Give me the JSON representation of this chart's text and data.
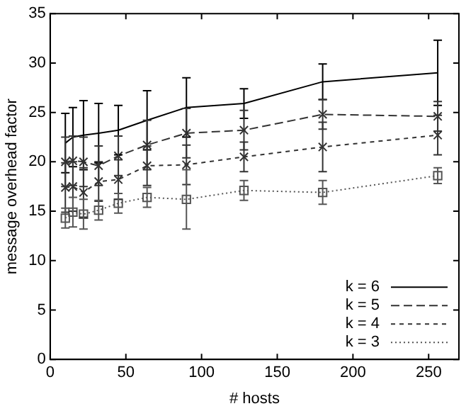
{
  "chart_data": {
    "type": "line",
    "xlabel": "# hosts",
    "ylabel": "message overhead factor",
    "x": [
      10,
      15,
      22,
      32,
      45,
      64,
      90,
      128,
      180,
      256
    ],
    "xlim": [
      0,
      270
    ],
    "xticks": [
      0,
      50,
      100,
      150,
      200,
      250
    ],
    "ylim": [
      0,
      35
    ],
    "yticks": [
      0,
      5,
      10,
      15,
      20,
      25,
      30,
      35
    ],
    "grid": false,
    "legend": "bottom right",
    "series": [
      {
        "name": "k = 6",
        "color": "#000000",
        "line_style": "solid",
        "marker": "none",
        "values": [
          21.9,
          22.5,
          22.7,
          22.9,
          23.2,
          24.2,
          25.5,
          25.9,
          28.1,
          29.0
        ],
        "errors": [
          3,
          3,
          3.5,
          3,
          2.5,
          3,
          3,
          1.5,
          1.8,
          3.3
        ]
      },
      {
        "name": "k = 5",
        "color": "#333333",
        "line_style": "dashed",
        "marker": "cross",
        "values": [
          20.0,
          20.1,
          20.0,
          19.6,
          20.6,
          21.7,
          22.9,
          23.2,
          24.8,
          24.6
        ],
        "errors": [
          2.5,
          2.5,
          2.5,
          2,
          2,
          2.5,
          2.5,
          2,
          1.5,
          1.5
        ]
      },
      {
        "name": "k = 4",
        "color": "#333333",
        "line_style": "dashed_short",
        "marker": "cross",
        "values": [
          17.4,
          17.5,
          16.9,
          18.0,
          18.2,
          19.6,
          19.7,
          20.5,
          21.5,
          22.7
        ],
        "errors": [
          2.5,
          2.5,
          2.5,
          2,
          2,
          2,
          2,
          1.5,
          2.5,
          2
        ]
      },
      {
        "name": "k = 3",
        "color": "#555555",
        "line_style": "dotted",
        "marker": "square",
        "values": [
          14.3,
          14.9,
          14.7,
          15.1,
          15.8,
          16.4,
          16.2,
          17.1,
          16.9,
          18.6
        ],
        "errors": [
          1,
          1.5,
          1.5,
          1,
          1,
          1,
          3,
          1,
          1.2,
          0.8
        ]
      }
    ]
  }
}
